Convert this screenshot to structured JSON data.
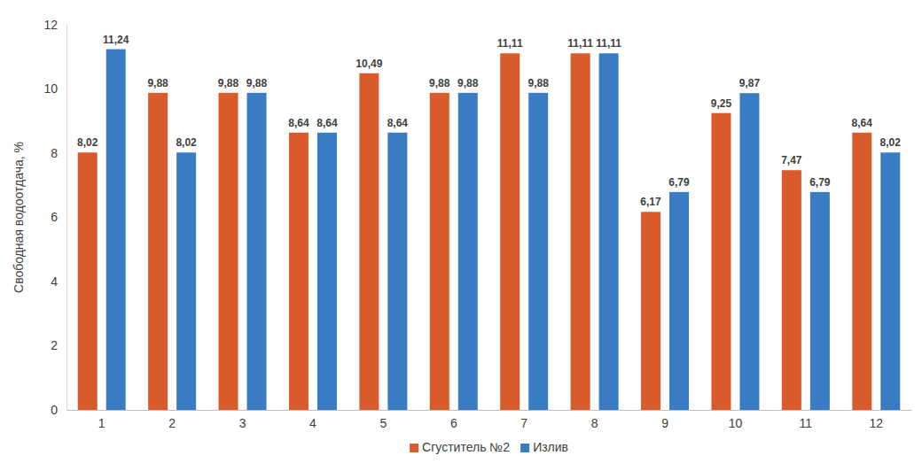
{
  "chart_data": {
    "type": "bar",
    "y_label": "Свободная водоотдача, %",
    "categories": [
      "1",
      "2",
      "3",
      "4",
      "5",
      "6",
      "7",
      "8",
      "9",
      "10",
      "11",
      "12"
    ],
    "series": [
      {
        "name": "Сгуститель №2",
        "color": "#d95a2b",
        "values": [
          8.02,
          9.88,
          9.88,
          8.64,
          10.49,
          9.88,
          11.11,
          11.11,
          6.17,
          9.25,
          7.47,
          8.64
        ],
        "value_labels": [
          "8,02",
          "9,88",
          "9,88",
          "8,64",
          "10,49",
          "9,88",
          "11,11",
          "11,11",
          "6,17",
          "9,25",
          "7,47",
          "8,64"
        ]
      },
      {
        "name": "Излив",
        "color": "#3a7cc3",
        "values": [
          11.24,
          8.02,
          9.88,
          8.64,
          8.64,
          9.88,
          9.88,
          11.11,
          6.79,
          9.87,
          6.79,
          8.02
        ],
        "value_labels": [
          "11,24",
          "8,02",
          "9,88",
          "8,64",
          "8,64",
          "9,88",
          "9,88",
          "11,11",
          "6,79",
          "9,87",
          "6,79",
          "8,02"
        ]
      }
    ],
    "ylim": [
      0,
      12
    ],
    "yticks": [
      0,
      2,
      4,
      6,
      8,
      10,
      12
    ],
    "grid": false,
    "data_labels": true,
    "legend": "bottom"
  }
}
